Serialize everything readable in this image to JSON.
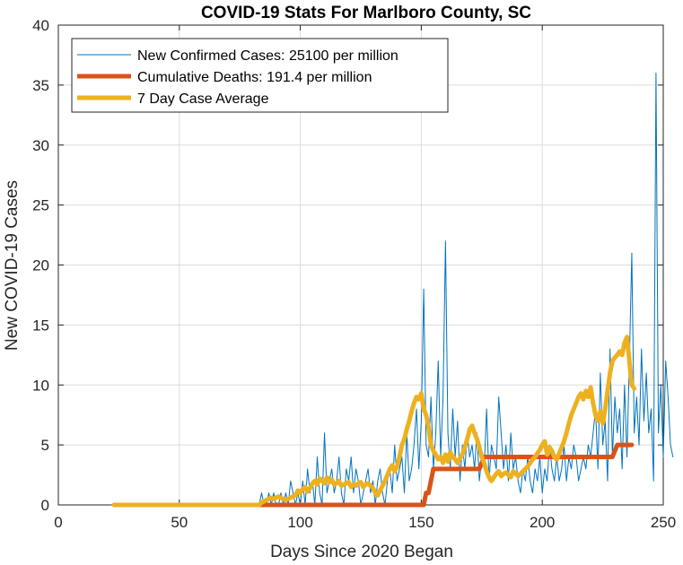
{
  "chart_data": {
    "type": "line",
    "title": "COVID-19 Stats For Marlboro County, SC",
    "xlabel": "Days Since 2020 Began",
    "ylabel": "New COVID-19 Cases",
    "xlim": [
      0,
      250
    ],
    "ylim": [
      0,
      40
    ],
    "xticks": [
      "0",
      "50",
      "100",
      "150",
      "200",
      "250"
    ],
    "yticks": [
      "0",
      "5",
      "10",
      "15",
      "20",
      "25",
      "30",
      "35",
      "40"
    ],
    "grid": true,
    "legend_position": "top-left",
    "series": [
      {
        "name": "New Confirmed Cases: 25100 per million",
        "color": "#0072BD",
        "x_start": 83,
        "values": [
          0,
          1,
          0,
          0,
          1,
          0,
          1,
          0,
          0,
          1,
          0,
          1,
          0,
          2,
          1,
          0,
          1,
          0,
          2,
          0,
          3,
          1,
          2,
          0,
          4,
          1,
          0,
          6,
          1,
          2,
          3,
          1,
          2,
          4,
          1,
          0,
          3,
          2,
          4,
          1,
          3,
          2,
          0,
          1,
          2,
          3,
          1,
          2,
          0,
          2,
          3,
          1,
          0,
          2,
          3,
          1,
          5,
          2,
          3,
          4,
          1,
          6,
          2,
          3,
          5,
          8,
          3,
          7,
          18,
          5,
          4,
          9,
          3,
          6,
          12,
          4,
          9,
          22,
          6,
          3,
          8,
          4,
          7,
          2,
          5,
          3,
          6,
          4,
          5,
          3,
          6,
          2,
          4,
          3,
          8,
          2,
          5,
          4,
          3,
          9,
          6,
          3,
          5,
          2,
          6,
          3,
          4,
          2,
          1,
          3,
          2,
          4,
          2,
          1,
          3,
          2,
          4,
          1,
          3,
          2,
          5,
          3,
          2,
          4,
          2,
          3,
          5,
          2,
          4,
          3,
          5,
          4,
          2,
          3,
          4,
          3,
          5,
          4,
          6,
          8,
          3,
          11,
          5,
          7,
          2,
          13,
          4,
          9,
          6,
          8,
          3,
          10,
          4,
          12,
          21,
          6,
          9,
          5,
          13,
          7,
          11,
          6,
          8,
          2,
          36,
          6,
          10,
          4,
          12,
          9,
          5,
          4
        ],
        "line_width": 1
      },
      {
        "name": "Cumulative Deaths: 191.4 per million",
        "color": "#D95319",
        "x": [
          83,
          151,
          152,
          153,
          154,
          155,
          174,
          175,
          176,
          229,
          230,
          231,
          237
        ],
        "values": [
          0,
          0,
          1,
          1,
          2,
          3,
          3,
          3.5,
          4,
          4,
          4.5,
          5,
          5
        ],
        "line_width": 5
      },
      {
        "name": "7 Day Case Average",
        "color": "#EDB120",
        "x_start": 23,
        "x_end": 238,
        "values": [
          0,
          0,
          0,
          0,
          0,
          0,
          0,
          0,
          0,
          0,
          0,
          0,
          0,
          0,
          0,
          0,
          0,
          0,
          0,
          0,
          0,
          0,
          0,
          0,
          0,
          0,
          0,
          0,
          0,
          0,
          0,
          0,
          0,
          0,
          0,
          0,
          0,
          0,
          0,
          0,
          0,
          0,
          0,
          0,
          0,
          0,
          0,
          0,
          0,
          0,
          0,
          0,
          0,
          0,
          0,
          0,
          0,
          0,
          0,
          0,
          0,
          0.2,
          0.3,
          0.4,
          0.5,
          0.6,
          0.5,
          0.6,
          0.7,
          0.6,
          0.5,
          0.4,
          0.5,
          0.6,
          0.7,
          0.8,
          1.2,
          1.0,
          1.3,
          1.5,
          1.1,
          1.4,
          1.8,
          2.0,
          1.7,
          2.2,
          2.0,
          1.8,
          2.3,
          1.9,
          2.1,
          1.7,
          1.8,
          2.0,
          1.6,
          1.7,
          1.8,
          1.9,
          1.5,
          1.7,
          1.6,
          1.8,
          1.9,
          1.5,
          1.7,
          1.8,
          1.6,
          1.4,
          1.0,
          0.8,
          1.2,
          1.6,
          2.0,
          2.5,
          3.0,
          3.3,
          2.8,
          3.2,
          4.0,
          5.0,
          5.5,
          6.3,
          7.0,
          7.8,
          8.5,
          9.0,
          8.8,
          9.3,
          8.0,
          7.5,
          6.5,
          5.0,
          4.5,
          4.2,
          3.8,
          4.0,
          3.5,
          4.2,
          3.6,
          4.4,
          4.0,
          3.8,
          3.5,
          3.9,
          4.2,
          4.8,
          5.5,
          6.3,
          6.6,
          6.0,
          5.5,
          4.8,
          4.0,
          3.5,
          2.8,
          2.3,
          2.0,
          2.3,
          2.6,
          2.8,
          2.4,
          2.6,
          2.7,
          2.5,
          2.3,
          2.8,
          2.6,
          2.4,
          2.6,
          2.8,
          3.0,
          3.2,
          3.5,
          3.8,
          4.0,
          4.3,
          4.6,
          5.0,
          5.3,
          4.2,
          4.8,
          4.5,
          4.0,
          3.8,
          4.3,
          4.8,
          5.3,
          6.0,
          6.8,
          7.5,
          8.0,
          8.5,
          9.0,
          9.3,
          8.8,
          9.5,
          9.0,
          9.8,
          8.5,
          7.5,
          7.0,
          7.8,
          6.8,
          8.0,
          9.5,
          11.0,
          12.0,
          12.3,
          12.5,
          12.8,
          12.5,
          13.5,
          14.0,
          12.0,
          10.0,
          9.7
        ],
        "line_width": 5
      }
    ]
  }
}
